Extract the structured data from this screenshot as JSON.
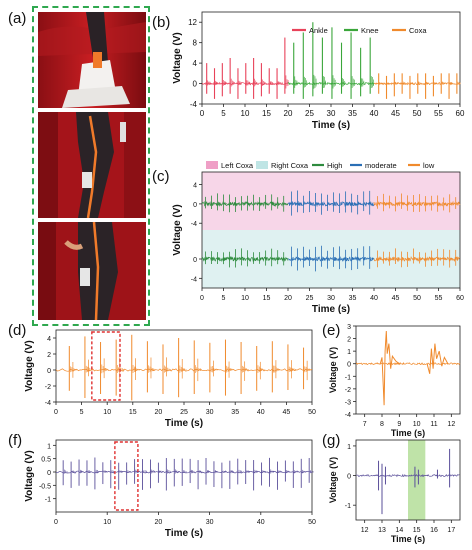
{
  "panel_labels": {
    "a": "(a)",
    "b": "(b)",
    "c": "(c)",
    "d": "(d)",
    "e": "(e)",
    "f": "(f)",
    "g": "(g)"
  },
  "colors": {
    "ankle": "#e8425a",
    "knee": "#3aa63a",
    "coxa": "#f08a2c",
    "high": "#2e8b3e",
    "moderate": "#2a6fb5",
    "low": "#f08a2c",
    "left_coxa_bg": "#f7d6e8",
    "right_coxa_bg": "#dff1f1",
    "orange_trace": "#f08a2c",
    "purple_trace": "#5a4f9a",
    "highlight_box": "#e03030",
    "green_band": "#bfe3a8"
  },
  "chart_data": [
    {
      "id": "b",
      "type": "line",
      "xlabel": "Time (s)",
      "ylabel": "Voltage (V)",
      "xlim": [
        0,
        60
      ],
      "ylim": [
        -4,
        14
      ],
      "xticks": [
        0,
        5,
        10,
        15,
        20,
        25,
        30,
        35,
        40,
        45,
        50,
        55,
        60
      ],
      "yticks": [
        -4,
        0,
        4,
        8,
        12
      ],
      "legend": [
        "Ankle",
        "Knee",
        "Coxa"
      ],
      "legend_position": "top-right",
      "series": [
        {
          "name": "Ankle",
          "x_range": [
            0,
            20
          ],
          "peaks": [
            4,
            3,
            4,
            5,
            3,
            4,
            5,
            4,
            3,
            3,
            9
          ]
        },
        {
          "name": "Knee",
          "x_range": [
            20,
            40
          ],
          "peaks": [
            8,
            10,
            12,
            9,
            11,
            8,
            10,
            7,
            9
          ]
        },
        {
          "name": "Coxa",
          "x_range": [
            40,
            60
          ],
          "peaks": [
            2,
            1.5,
            2,
            2,
            1.5,
            2,
            2,
            1.5,
            2,
            2,
            2
          ]
        }
      ]
    },
    {
      "id": "c",
      "type": "line",
      "xlabel": "Time (s)",
      "ylabel": "Voltage (V)",
      "xlim": [
        0,
        60
      ],
      "xticks": [
        0,
        5,
        10,
        15,
        20,
        25,
        30,
        35,
        40,
        45,
        50,
        55,
        60
      ],
      "yticks": [
        4,
        0,
        -4
      ],
      "legend": [
        "Left Coxa",
        "Right Coxa",
        "High",
        "moderate",
        "low"
      ],
      "legend_position": "top",
      "series": [
        {
          "name": "High",
          "x_range": [
            0,
            20
          ]
        },
        {
          "name": "moderate",
          "x_range": [
            20,
            40
          ]
        },
        {
          "name": "low",
          "x_range": [
            40,
            60
          ]
        }
      ]
    },
    {
      "id": "d",
      "type": "line",
      "xlabel": "Time (s)",
      "ylabel": "Voltage (V)",
      "xlim": [
        0,
        50
      ],
      "ylim": [
        -4,
        5
      ],
      "xticks": [
        0,
        5,
        10,
        15,
        20,
        25,
        30,
        35,
        40,
        45,
        50
      ],
      "yticks": [
        4,
        2,
        0,
        -2,
        -4
      ],
      "highlight_x": [
        7,
        12.5
      ]
    },
    {
      "id": "e",
      "type": "line",
      "xlabel": "Time (s)",
      "ylabel": "Voltage (V)",
      "xlim": [
        6.5,
        12.5
      ],
      "ylim": [
        -4,
        3
      ],
      "xticks": [
        7,
        8,
        9,
        10,
        11,
        12
      ],
      "yticks": [
        3,
        2,
        1,
        0,
        -1,
        -2,
        -3,
        -4
      ]
    },
    {
      "id": "f",
      "type": "line",
      "xlabel": "Time (s)",
      "ylabel": "Voltage (V)",
      "xlim": [
        0,
        50
      ],
      "ylim": [
        -1.5,
        1.2
      ],
      "xticks": [
        0,
        10,
        20,
        30,
        40,
        50
      ],
      "yticks": [
        1,
        0.5,
        0,
        -0.5,
        -1
      ],
      "highlight_x": [
        11.5,
        16
      ]
    },
    {
      "id": "g",
      "type": "line",
      "xlabel": "Time (s)",
      "ylabel": "Voltage (V)",
      "xlim": [
        11.5,
        17.5
      ],
      "ylim": [
        -1.5,
        1.2
      ],
      "xticks": [
        12,
        13,
        14,
        15,
        16,
        17
      ],
      "yticks": [
        1,
        0,
        -1
      ],
      "highlight_x": [
        14.5,
        15.5
      ]
    }
  ]
}
